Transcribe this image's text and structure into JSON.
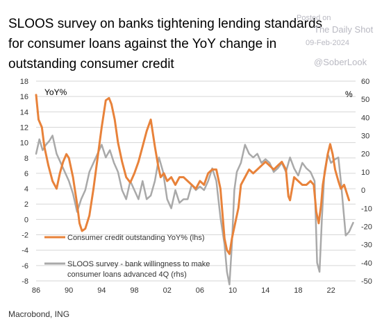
{
  "title": "SLOOS survey on banks tightening lending standards for consumer loans against the YoY change in outstanding consumer credit",
  "watermark": {
    "posted_on": "Posted on",
    "source": "The Daily Shot",
    "date": "09-Feb-2024",
    "handle": "@SoberLook"
  },
  "footer": "Macrobond, ING",
  "colors": {
    "orange": "#e8823a",
    "gray": "#a9a9a9",
    "grid": "#d6d6d6"
  },
  "chart_data": {
    "type": "line",
    "left_axis_label": "YoY%",
    "right_axis_label": "%",
    "x_ticks": [
      "86",
      "90",
      "94",
      "98",
      "02",
      "06",
      "10",
      "14",
      "18",
      "22"
    ],
    "xlim": [
      1986,
      2025
    ],
    "ylim_left": [
      -8,
      18
    ],
    "ylim_right": [
      -50,
      60
    ],
    "y_ticks_left": [
      -8,
      -6,
      -4,
      -2,
      0,
      2,
      4,
      6,
      8,
      10,
      12,
      14,
      16,
      18
    ],
    "y_ticks_right": [
      -50,
      -40,
      -30,
      -20,
      -10,
      0,
      10,
      20,
      30,
      40,
      50,
      60
    ],
    "grid": "horizontal",
    "legend_position": "bottom-left",
    "series": [
      {
        "name": "Consumer credit outstanding YoY% (lhs)",
        "axis": "left",
        "color": "#e8823a",
        "x": [
          1986.0,
          1986.3,
          1986.7,
          1987.0,
          1987.5,
          1988.0,
          1988.5,
          1988.9,
          1989.3,
          1989.7,
          1990.0,
          1990.5,
          1991.0,
          1991.3,
          1991.6,
          1992.0,
          1992.5,
          1993.0,
          1993.5,
          1994.0,
          1994.5,
          1994.9,
          1995.2,
          1995.6,
          1996.0,
          1996.5,
          1997.0,
          1997.5,
          1998.0,
          1998.5,
          1999.0,
          1999.5,
          2000.0,
          2000.5,
          2000.9,
          2001.2,
          2001.6,
          2002.0,
          2002.5,
          2003.0,
          2003.5,
          2004.0,
          2004.5,
          2005.0,
          2005.5,
          2006.0,
          2006.5,
          2007.0,
          2007.5,
          2008.0,
          2008.5,
          2009.0,
          2009.3,
          2009.6,
          2009.9,
          2010.3,
          2010.7,
          2011.0,
          2011.5,
          2012.0,
          2012.5,
          2013.0,
          2013.5,
          2014.0,
          2014.5,
          2015.0,
          2015.5,
          2016.0,
          2016.5,
          2016.8,
          2017.0,
          2017.5,
          2018.0,
          2018.5,
          2019.0,
          2019.5,
          2019.9,
          2020.2,
          2020.5,
          2020.8,
          2021.0,
          2021.3,
          2021.6,
          2021.9,
          2022.2,
          2022.5,
          2022.9,
          2023.2,
          2023.6,
          2023.9,
          2024.2
        ],
        "y": [
          16.2,
          13.0,
          12.0,
          9.5,
          7.0,
          5.0,
          4.0,
          6.0,
          7.5,
          8.5,
          8.0,
          5.5,
          2.0,
          -0.5,
          -1.5,
          -1.2,
          0.5,
          4.0,
          8.0,
          12.0,
          15.5,
          15.8,
          15.0,
          13.0,
          10.0,
          7.5,
          5.5,
          4.8,
          6.0,
          7.5,
          9.5,
          11.5,
          13.0,
          9.5,
          7.0,
          5.5,
          6.0,
          5.0,
          5.5,
          4.5,
          5.5,
          5.5,
          5.0,
          4.5,
          4.0,
          5.0,
          4.5,
          6.0,
          6.5,
          6.5,
          4.0,
          -2.5,
          -4.0,
          -4.5,
          -2.5,
          -0.5,
          1.5,
          4.5,
          5.5,
          6.5,
          6.0,
          6.5,
          7.0,
          7.5,
          7.0,
          6.5,
          7.0,
          7.5,
          6.5,
          3.0,
          2.5,
          5.5,
          5.0,
          4.5,
          4.5,
          5.0,
          4.5,
          1.0,
          -0.5,
          2.0,
          4.5,
          6.5,
          8.5,
          9.8,
          8.5,
          6.5,
          5.0,
          4.0,
          4.5,
          3.5,
          2.5
        ]
      },
      {
        "name": "SLOOS survey - bank willingness to make consumer loans advanced 4Q (rhs)",
        "axis": "right",
        "color": "#a9a9a9",
        "x": [
          1986.0,
          1986.4,
          1986.8,
          1987.2,
          1987.6,
          1988.0,
          1988.5,
          1989.0,
          1989.5,
          1990.0,
          1990.5,
          1991.0,
          1991.5,
          1992.0,
          1992.5,
          1993.0,
          1993.5,
          1994.0,
          1994.5,
          1995.0,
          1995.5,
          1996.0,
          1996.5,
          1997.0,
          1997.5,
          1998.0,
          1998.5,
          1999.0,
          1999.5,
          2000.0,
          2000.5,
          2001.0,
          2001.5,
          2002.0,
          2002.5,
          2003.0,
          2003.5,
          2004.0,
          2004.5,
          2005.0,
          2005.5,
          2006.0,
          2006.5,
          2007.0,
          2007.5,
          2008.0,
          2008.5,
          2009.0,
          2009.3,
          2009.6,
          2009.9,
          2010.2,
          2010.5,
          2011.0,
          2011.5,
          2012.0,
          2012.5,
          2013.0,
          2013.5,
          2014.0,
          2014.5,
          2015.0,
          2015.5,
          2016.0,
          2016.5,
          2017.0,
          2017.5,
          2018.0,
          2018.5,
          2019.0,
          2019.5,
          2020.0,
          2020.3,
          2020.6,
          2020.9,
          2021.2,
          2021.6,
          2022.0,
          2022.5,
          2022.9,
          2023.2,
          2023.5,
          2023.8,
          2024.2,
          2024.7
        ],
        "y": [
          20,
          28,
          22,
          25,
          27,
          30,
          20,
          15,
          10,
          5,
          -2,
          -12,
          -5,
          0,
          10,
          15,
          20,
          25,
          18,
          22,
          15,
          10,
          0,
          -5,
          5,
          0,
          -5,
          5,
          -5,
          -3,
          5,
          18,
          10,
          -5,
          -10,
          0,
          -7,
          -5,
          -5,
          3,
          0,
          2,
          0,
          5,
          12,
          5,
          -15,
          -30,
          -45,
          -52,
          -30,
          0,
          10,
          15,
          25,
          20,
          18,
          20,
          15,
          17,
          15,
          10,
          12,
          15,
          10,
          18,
          12,
          8,
          15,
          12,
          10,
          5,
          -40,
          -45,
          -15,
          10,
          20,
          15,
          17,
          18,
          5,
          -10,
          -25,
          -23,
          -18
        ]
      }
    ]
  }
}
